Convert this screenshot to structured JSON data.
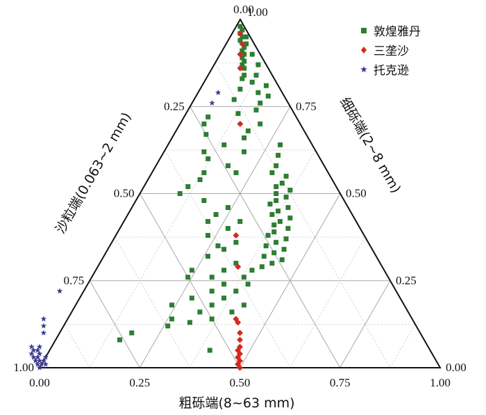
{
  "chart_data": {
    "type": "scatter",
    "subtype": "ternary",
    "axes": {
      "bottom": {
        "label": "粗砾端(8~63 mm)",
        "ticks": [
          "0.00",
          "0.25",
          "0.50",
          "0.75",
          "1.00"
        ]
      },
      "left": {
        "label": "沙粒端(0.063~2 mm)",
        "ticks": [
          "0.00",
          "0.25",
          "0.50",
          "0.75",
          "1.00"
        ]
      },
      "right": {
        "label": "细砾端(2~8 mm)",
        "ticks": [
          "1.00",
          "0.75",
          "0.50",
          "0.25",
          "0.00"
        ]
      }
    },
    "grid": true,
    "legend_position": "top-right",
    "colors": {
      "dunhuang": "#2e7d32",
      "sanlongsha": "#d42a1e",
      "tuokexun": "#3b3b8f"
    },
    "series": [
      {
        "name": "敦煌雅丹",
        "key": "dunhuang",
        "marker": "square",
        "points": [
          [
            0.98,
            0.01,
            0.01
          ],
          [
            0.97,
            0.01,
            0.02
          ],
          [
            0.96,
            0.02,
            0.02
          ],
          [
            0.95,
            0.02,
            0.03
          ],
          [
            0.94,
            0.03,
            0.03
          ],
          [
            0.93,
            0.02,
            0.05
          ],
          [
            0.92,
            0.03,
            0.05
          ],
          [
            0.91,
            0.04,
            0.05
          ],
          [
            0.9,
            0.04,
            0.06
          ],
          [
            0.89,
            0.05,
            0.06
          ],
          [
            0.88,
            0.05,
            0.07
          ],
          [
            0.87,
            0.06,
            0.07
          ],
          [
            0.86,
            0.06,
            0.08
          ],
          [
            0.84,
            0.07,
            0.09
          ],
          [
            0.82,
            0.06,
            0.12
          ],
          [
            0.95,
            0.01,
            0.04
          ],
          [
            0.9,
            0.02,
            0.08
          ],
          [
            0.87,
            0.02,
            0.11
          ],
          [
            0.84,
            0.04,
            0.12
          ],
          [
            0.83,
            0.08,
            0.09
          ],
          [
            0.8,
            0.1,
            0.1
          ],
          [
            0.79,
            0.06,
            0.15
          ],
          [
            0.78,
            0.04,
            0.18
          ],
          [
            0.76,
            0.07,
            0.17
          ],
          [
            0.74,
            0.09,
            0.17
          ],
          [
            0.81,
            0.03,
            0.16
          ],
          [
            0.77,
            0.13,
            0.1
          ],
          [
            0.73,
            0.14,
            0.13
          ],
          [
            0.7,
            0.1,
            0.2
          ],
          [
            0.68,
            0.14,
            0.18
          ],
          [
            0.72,
            0.22,
            0.06
          ],
          [
            0.7,
            0.24,
            0.06
          ],
          [
            0.67,
            0.25,
            0.08
          ],
          [
            0.64,
            0.22,
            0.14
          ],
          [
            0.62,
            0.18,
            0.2
          ],
          [
            0.6,
            0.28,
            0.12
          ],
          [
            0.58,
            0.24,
            0.18
          ],
          [
            0.56,
            0.23,
            0.21
          ],
          [
            0.62,
            0.28,
            0.1
          ],
          [
            0.66,
            0.16,
            0.18
          ],
          [
            0.64,
            0.08,
            0.28
          ],
          [
            0.61,
            0.1,
            0.29
          ],
          [
            0.58,
            0.12,
            0.3
          ],
          [
            0.56,
            0.14,
            0.3
          ],
          [
            0.55,
            0.11,
            0.34
          ],
          [
            0.53,
            0.13,
            0.34
          ],
          [
            0.52,
            0.15,
            0.33
          ],
          [
            0.51,
            0.12,
            0.37
          ],
          [
            0.5,
            0.16,
            0.34
          ],
          [
            0.49,
            0.14,
            0.37
          ],
          [
            0.48,
            0.17,
            0.35
          ],
          [
            0.47,
            0.19,
            0.34
          ],
          [
            0.46,
            0.15,
            0.39
          ],
          [
            0.45,
            0.18,
            0.37
          ],
          [
            0.44,
            0.2,
            0.36
          ],
          [
            0.43,
            0.16,
            0.41
          ],
          [
            0.42,
            0.19,
            0.39
          ],
          [
            0.41,
            0.21,
            0.38
          ],
          [
            0.4,
            0.18,
            0.42
          ],
          [
            0.39,
            0.22,
            0.39
          ],
          [
            0.38,
            0.24,
            0.38
          ],
          [
            0.37,
            0.2,
            0.43
          ],
          [
            0.36,
            0.23,
            0.41
          ],
          [
            0.35,
            0.26,
            0.39
          ],
          [
            0.34,
            0.22,
            0.44
          ],
          [
            0.33,
            0.25,
            0.42
          ],
          [
            0.32,
            0.28,
            0.4
          ],
          [
            0.31,
            0.24,
            0.45
          ],
          [
            0.3,
            0.27,
            0.43
          ],
          [
            0.29,
            0.3,
            0.41
          ],
          [
            0.54,
            0.33,
            0.13
          ],
          [
            0.52,
            0.37,
            0.11
          ],
          [
            0.5,
            0.4,
            0.1
          ],
          [
            0.48,
            0.35,
            0.17
          ],
          [
            0.46,
            0.3,
            0.24
          ],
          [
            0.44,
            0.34,
            0.22
          ],
          [
            0.42,
            0.29,
            0.29
          ],
          [
            0.4,
            0.33,
            0.27
          ],
          [
            0.38,
            0.39,
            0.23
          ],
          [
            0.36,
            0.33,
            0.31
          ],
          [
            0.34,
            0.37,
            0.29
          ],
          [
            0.32,
            0.42,
            0.26
          ],
          [
            0.3,
            0.36,
            0.34
          ],
          [
            0.28,
            0.4,
            0.32
          ],
          [
            0.26,
            0.44,
            0.3
          ],
          [
            0.24,
            0.42,
            0.34
          ],
          [
            0.22,
            0.46,
            0.32
          ],
          [
            0.2,
            0.52,
            0.28
          ],
          [
            0.18,
            0.48,
            0.34
          ],
          [
            0.16,
            0.52,
            0.32
          ],
          [
            0.14,
            0.5,
            0.36
          ],
          [
            0.13,
            0.56,
            0.31
          ],
          [
            0.24,
            0.36,
            0.4
          ],
          [
            0.22,
            0.4,
            0.38
          ],
          [
            0.2,
            0.44,
            0.36
          ],
          [
            0.28,
            0.33,
            0.39
          ],
          [
            0.26,
            0.36,
            0.38
          ],
          [
            0.18,
            0.4,
            0.42
          ],
          [
            0.16,
            0.44,
            0.4
          ],
          [
            0.14,
            0.6,
            0.26
          ],
          [
            0.12,
            0.62,
            0.26
          ],
          [
            0.1,
            0.72,
            0.18
          ],
          [
            0.08,
            0.76,
            0.16
          ],
          [
            0.28,
            0.48,
            0.24
          ],
          [
            0.26,
            0.5,
            0.24
          ],
          [
            0.35,
            0.38,
            0.27
          ],
          [
            0.18,
            0.58,
            0.24
          ],
          [
            0.42,
            0.37,
            0.21
          ],
          [
            0.56,
            0.31,
            0.13
          ],
          [
            0.05,
            0.55,
            0.4
          ]
        ]
      },
      {
        "name": "三垄沙",
        "key": "sanlongsha",
        "marker": "diamond",
        "points": [
          [
            0.96,
            0.02,
            0.02
          ],
          [
            0.93,
            0.03,
            0.04
          ],
          [
            0.9,
            0.05,
            0.05
          ],
          [
            0.86,
            0.07,
            0.07
          ],
          [
            0.7,
            0.15,
            0.15
          ],
          [
            0.38,
            0.32,
            0.3
          ],
          [
            0.29,
            0.36,
            0.35
          ],
          [
            0.14,
            0.44,
            0.42
          ],
          [
            0.13,
            0.44,
            0.43
          ],
          [
            0.1,
            0.45,
            0.45
          ],
          [
            0.08,
            0.46,
            0.46
          ],
          [
            0.06,
            0.47,
            0.47
          ],
          [
            0.05,
            0.48,
            0.47
          ],
          [
            0.04,
            0.48,
            0.48
          ],
          [
            0.03,
            0.49,
            0.48
          ],
          [
            0.02,
            0.49,
            0.49
          ],
          [
            0.01,
            0.5,
            0.49
          ],
          [
            0.0,
            0.5,
            0.5
          ]
        ]
      },
      {
        "name": "托克逊",
        "key": "tuokexun",
        "marker": "star",
        "points": [
          [
            0.79,
            0.16,
            0.05
          ],
          [
            0.76,
            0.19,
            0.05
          ],
          [
            0.22,
            0.84,
            -0.06
          ],
          [
            0.14,
            0.92,
            -0.06
          ],
          [
            0.12,
            0.93,
            -0.05
          ],
          [
            0.1,
            0.94,
            -0.04
          ],
          [
            0.06,
            0.97,
            -0.03
          ],
          [
            0.05,
            0.98,
            -0.03
          ],
          [
            0.04,
            0.98,
            -0.02
          ],
          [
            0.03,
            0.99,
            -0.02
          ],
          [
            0.02,
            0.99,
            -0.01
          ],
          [
            0.02,
            1.0,
            -0.02
          ],
          [
            0.01,
            1.0,
            -0.01
          ],
          [
            0.01,
            0.99,
            0.0
          ],
          [
            0.03,
            1.0,
            -0.03
          ],
          [
            0.04,
            1.0,
            -0.04
          ],
          [
            0.0,
            1.0,
            0.0
          ],
          [
            0.02,
            0.98,
            0.0
          ],
          [
            0.05,
            0.99,
            -0.04
          ],
          [
            0.03,
            0.97,
            0.0
          ],
          [
            0.01,
            0.98,
            0.01
          ],
          [
            0.06,
            0.99,
            -0.05
          ]
        ]
      }
    ]
  }
}
